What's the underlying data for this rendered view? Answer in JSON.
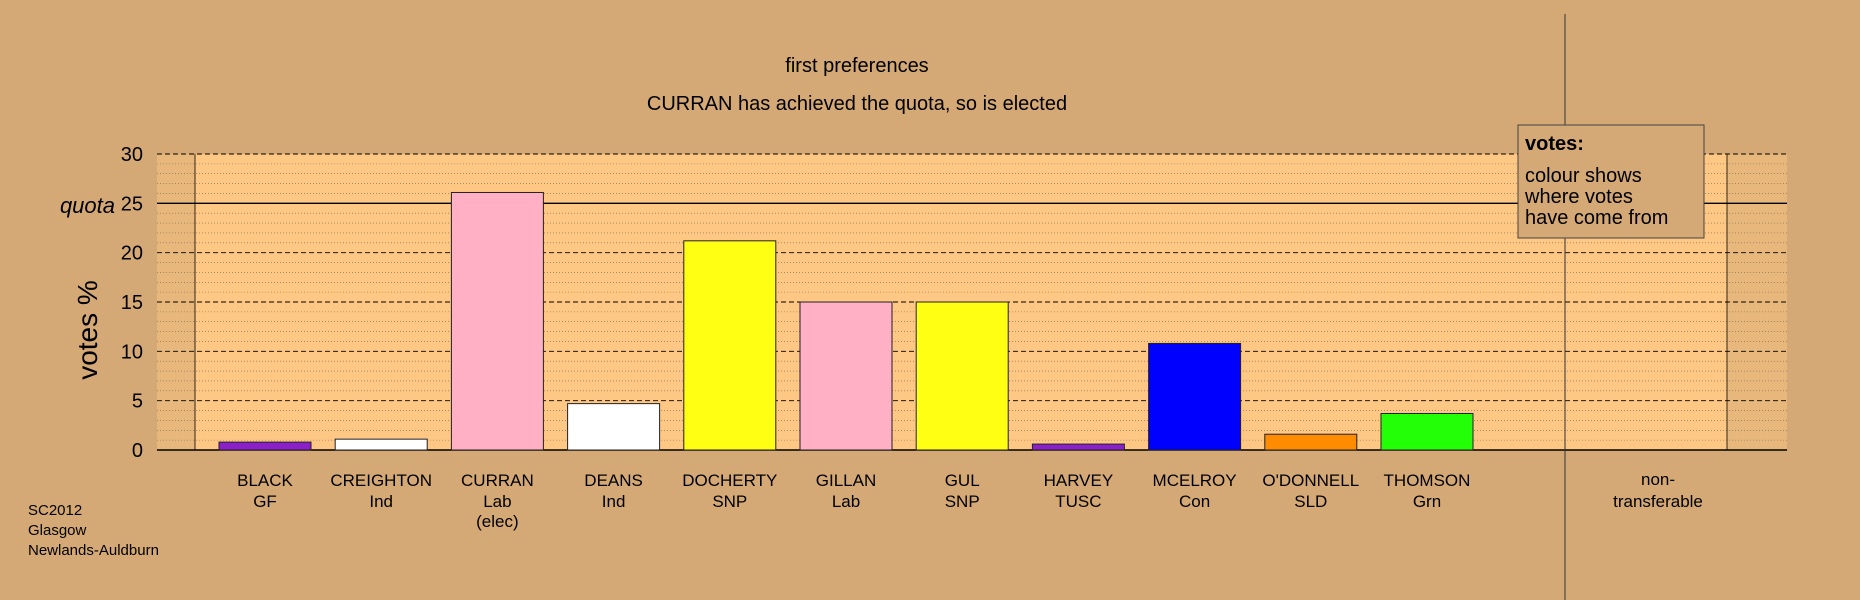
{
  "title": "first preferences",
  "subtitle": "CURRAN has achieved the quota, so is elected",
  "ylabel": "votes %",
  "quota_label": "quota",
  "footer": [
    "SC2012",
    "Glasgow",
    "Newlands-Auldburn"
  ],
  "legend": {
    "title": "votes:",
    "lines": [
      "colour shows",
      "where votes",
      "have come from"
    ]
  },
  "chart_data": {
    "type": "bar",
    "title": "first preferences",
    "subtitle": "CURRAN has achieved the quota, so is elected",
    "ylabel": "votes %",
    "ylim": [
      0,
      30
    ],
    "yticks": [
      0,
      5,
      10,
      15,
      20,
      25,
      30
    ],
    "quota": 25,
    "categories": [
      {
        "name": "BLACK",
        "party": "GF",
        "note": "",
        "value": 0.8,
        "color": "#8b1fc9"
      },
      {
        "name": "CREIGHTON",
        "party": "Ind",
        "note": "",
        "value": 1.1,
        "color": "#ffffff"
      },
      {
        "name": "CURRAN",
        "party": "Lab",
        "note": "(elec)",
        "value": 26.1,
        "color": "#ffb0c4"
      },
      {
        "name": "DEANS",
        "party": "Ind",
        "note": "",
        "value": 4.7,
        "color": "#ffffff"
      },
      {
        "name": "DOCHERTY",
        "party": "SNP",
        "note": "",
        "value": 21.2,
        "color": "#ffff13"
      },
      {
        "name": "GILLAN",
        "party": "Lab",
        "note": "",
        "value": 15.0,
        "color": "#ffb0c4"
      },
      {
        "name": "GUL",
        "party": "SNP",
        "note": "",
        "value": 15.0,
        "color": "#ffff13"
      },
      {
        "name": "HARVEY",
        "party": "TUSC",
        "note": "",
        "value": 0.6,
        "color": "#8b1fc9"
      },
      {
        "name": "MCELROY",
        "party": "Con",
        "note": "",
        "value": 10.8,
        "color": "#0000ff"
      },
      {
        "name": "O'DONNELL",
        "party": "SLD",
        "note": "",
        "value": 1.6,
        "color": "#ff8c00"
      },
      {
        "name": "THOMSON",
        "party": "Grn",
        "note": "",
        "value": 3.7,
        "color": "#22ff06"
      }
    ],
    "nontransferable": {
      "line1": "non-",
      "line2": "transferable",
      "value": 0
    }
  }
}
